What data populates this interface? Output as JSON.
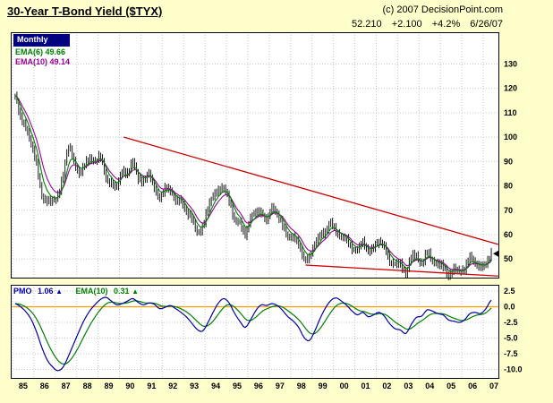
{
  "page": {
    "background": "#FFFFCC"
  },
  "header": {
    "title": "30-Year T-Bond Yield ($TYX)",
    "copyright": "(c) 2007 DecisionPoint.com"
  },
  "quote": {
    "last": "52.210",
    "change": "+2.100",
    "change_pct": "+4.2%",
    "date": "6/26/07"
  },
  "main_panel": {
    "frequency": "Monthly",
    "legend": [
      {
        "label": "EMA(6) 49.66",
        "color": "#008000"
      },
      {
        "label": "EMA(10) 49.14",
        "color": "#990099"
      }
    ]
  },
  "pmo_panel": {
    "label": "PMO",
    "value": "1.06",
    "arrow": "▲",
    "ema_label": "EMA(10)",
    "ema_value": "0.31",
    "ema_arrow": "▲",
    "colors": {
      "pmo": "#0000AA",
      "ema": "#008000"
    }
  },
  "chart_data": [
    {
      "type": "ohlc",
      "title": "30-Year T-Bond Yield ($TYX) Monthly",
      "sampling": "quarterly",
      "x_start": 1985.125,
      "x_step": 0.25,
      "x_range": [
        1984.92,
        2007.75
      ],
      "y_range": [
        42,
        143
      ],
      "y_ticks": [
        130,
        120,
        110,
        100,
        90,
        80,
        70,
        60,
        50
      ],
      "x_label_years": [
        "85",
        "86",
        "87",
        "88",
        "89",
        "90",
        "91",
        "92",
        "93",
        "94",
        "95",
        "96",
        "97",
        "98",
        "99",
        "00",
        "01",
        "02",
        "03",
        "04",
        "05",
        "06",
        "07"
      ],
      "close": [
        117,
        108,
        104,
        97,
        89,
        76,
        74,
        74,
        76,
        85,
        96,
        90,
        85,
        89,
        91,
        90,
        92,
        83,
        81,
        80,
        86,
        85,
        90,
        83,
        82,
        85,
        79,
        75,
        79,
        78,
        74,
        74,
        69,
        67,
        61,
        63,
        71,
        76,
        78,
        79,
        74,
        66,
        65,
        60,
        67,
        69,
        69,
        66,
        71,
        68,
        64,
        59,
        59,
        56,
        50,
        51,
        56,
        60,
        61,
        65,
        61,
        59,
        58,
        54,
        54,
        57,
        53,
        55,
        57,
        55,
        49,
        48,
        48,
        44,
        51,
        51,
        48,
        53,
        49,
        48,
        47,
        43,
        46,
        45,
        46,
        51,
        48,
        47,
        48,
        52.2
      ],
      "last": 52.21,
      "overlays": [
        {
          "name": "EMA(6)",
          "period": 6,
          "color": "#008000"
        },
        {
          "name": "EMA(10)",
          "period": 10,
          "color": "#990099"
        }
      ],
      "trendlines": [
        {
          "x1": 1990.2,
          "y1": 100,
          "x2": 2007.7,
          "y2": 56,
          "color": "#CC0000"
        },
        {
          "x1": 1998.7,
          "y1": 47.5,
          "x2": 2007.7,
          "y2": 43,
          "color": "#CC0000"
        }
      ]
    },
    {
      "type": "line",
      "title": "PMO with EMA(10)",
      "sampling": "quarterly",
      "x_start": 1985.125,
      "x_step": 0.25,
      "y_range": [
        -11.5,
        3.5
      ],
      "y_ticks": [
        "2.5",
        "0.0",
        "-2.5",
        "-5.0",
        "-7.5",
        "-10.0"
      ],
      "zero_line_color": "#FF9900",
      "series": [
        {
          "name": "PMO",
          "color": "#0000AA",
          "values": [
            0.5,
            0.0,
            -0.8,
            -2.0,
            -4.0,
            -6.5,
            -8.5,
            -9.6,
            -10.2,
            -9.6,
            -7.8,
            -5.8,
            -3.8,
            -2.0,
            -0.6,
            0.4,
            1.2,
            1.5,
            0.9,
            0.3,
            0.5,
            0.9,
            1.3,
            0.7,
            0.3,
            0.6,
            0.4,
            -0.3,
            -0.1,
            0.2,
            -0.3,
            -0.9,
            -1.6,
            -2.6,
            -3.6,
            -3.9,
            -2.6,
            -0.9,
            0.6,
            1.3,
            0.6,
            -1.0,
            -2.3,
            -3.3,
            -2.1,
            -0.6,
            0.3,
            0.2,
            0.5,
            0.2,
            -0.6,
            -1.6,
            -2.3,
            -3.3,
            -4.9,
            -5.4,
            -3.9,
            -1.9,
            -0.2,
            1.0,
            1.4,
            0.9,
            0.2,
            -0.7,
            -1.3,
            -0.9,
            -1.6,
            -1.3,
            -0.9,
            -1.5,
            -2.7,
            -3.5,
            -3.7,
            -4.3,
            -2.9,
            -1.7,
            -1.5,
            -0.5,
            -0.7,
            -1.1,
            -1.3,
            -2.1,
            -2.3,
            -2.5,
            -2.1,
            -1.1,
            -0.9,
            -1.1,
            -0.3,
            1.06
          ]
        },
        {
          "name": "EMA(10)",
          "color": "#008000",
          "derived_from": "PMO",
          "period": 10
        }
      ]
    }
  ]
}
